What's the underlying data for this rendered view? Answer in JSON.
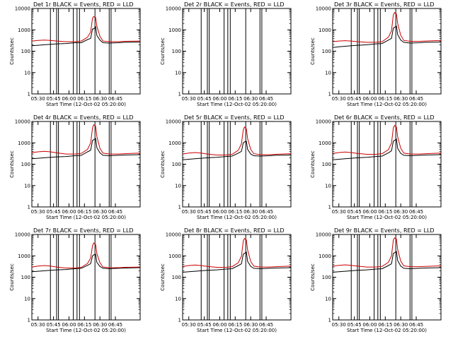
{
  "chart_data": {
    "type": "line",
    "layout": "3x3 grid",
    "shared": {
      "xlabel": "Start Time (12-Oct-02 05:20:00)",
      "ylabel": "Counts/sec",
      "yscale": "log",
      "ylim": [
        1,
        10000
      ],
      "y_ticks": [
        1,
        10,
        100,
        1000,
        10000
      ],
      "y_tick_labels": [
        "1",
        "10",
        "100",
        "1000",
        "10000"
      ],
      "xlim": [
        -0.1,
        1.65
      ],
      "x_ticks": [
        0,
        0.25,
        0.5,
        0.75,
        1.0,
        1.25
      ],
      "x_tick_labels": [
        "05:30",
        "05:45",
        "06:00",
        "06:15",
        "06:30",
        "06:45"
      ],
      "x_unit": "hours since 05:30",
      "colors": {
        "events": "#000000",
        "lld": "#cc0000",
        "axes": "#000000"
      }
    },
    "panels": [
      {
        "title": "Det 1r BLACK = Events, RED = LLD",
        "vlines": [
          0.2,
          0.3,
          0.33,
          0.57,
          0.63,
          0.67,
          0.92,
          1.15,
          1.18
        ],
        "series": [
          {
            "name": "Events",
            "x": [
              -0.1,
              0.0,
              0.1,
              0.2,
              0.3,
              0.45,
              0.6,
              0.7,
              0.8,
              0.85,
              0.88,
              0.9,
              0.93,
              0.95,
              1.0,
              1.05,
              1.15,
              1.3,
              1.4,
              1.65
            ],
            "y": [
              180,
              190,
              200,
              210,
              220,
              230,
              250,
              250,
              350,
              400,
              1100,
              1100,
              1400,
              550,
              330,
              250,
              240,
              250,
              260,
              270
            ]
          },
          {
            "name": "LLD",
            "x": [
              -0.1,
              0.0,
              0.1,
              0.2,
              0.3,
              0.45,
              0.6,
              0.7,
              0.8,
              0.85,
              0.88,
              0.9,
              0.93,
              0.95,
              1.0,
              1.05,
              1.15,
              1.3,
              1.4,
              1.65
            ],
            "y": [
              300,
              320,
              330,
              320,
              300,
              280,
              280,
              300,
              450,
              800,
              3500,
              4200,
              3800,
              1500,
              500,
              300,
              280,
              280,
              290,
              300
            ]
          }
        ]
      },
      {
        "title": "Det 2r BLACK = Events, RED = LLD",
        "vlines": [
          0.2,
          0.3,
          0.33,
          0.57,
          0.63,
          0.67,
          0.92,
          1.15,
          1.18
        ],
        "series": []
      },
      {
        "title": "Det 3r BLACK = Events, RED = LLD",
        "vlines": [
          0.2,
          0.3,
          0.33,
          0.57,
          0.63,
          0.67,
          0.92,
          1.15,
          1.18
        ],
        "series": [
          {
            "name": "Events",
            "x": [
              -0.1,
              0.0,
              0.1,
              0.2,
              0.3,
              0.45,
              0.6,
              0.7,
              0.8,
              0.85,
              0.88,
              0.9,
              0.93,
              0.95,
              1.0,
              1.05,
              1.15,
              1.3,
              1.4,
              1.65
            ],
            "y": [
              150,
              160,
              170,
              180,
              190,
              200,
              220,
              230,
              330,
              400,
              1200,
              1300,
              1500,
              600,
              330,
              260,
              240,
              250,
              260,
              270
            ]
          },
          {
            "name": "LLD",
            "x": [
              -0.1,
              0.0,
              0.1,
              0.2,
              0.3,
              0.45,
              0.6,
              0.7,
              0.8,
              0.85,
              0.88,
              0.9,
              0.93,
              0.95,
              1.0,
              1.05,
              1.15,
              1.3,
              1.4,
              1.65
            ],
            "y": [
              280,
              300,
              310,
              300,
              280,
              260,
              260,
              280,
              450,
              900,
              5000,
              6500,
              5500,
              2000,
              550,
              320,
              290,
              290,
              300,
              320
            ]
          }
        ]
      },
      {
        "title": "Det 4r BLACK = Events, RED = LLD",
        "vlines": [
          0.2,
          0.3,
          0.33,
          0.57,
          0.63,
          0.67,
          0.92,
          1.15,
          1.18
        ],
        "series": [
          {
            "name": "Events",
            "x": [
              -0.1,
              0.0,
              0.1,
              0.2,
              0.3,
              0.45,
              0.6,
              0.7,
              0.8,
              0.85,
              0.88,
              0.9,
              0.93,
              0.95,
              1.0,
              1.05,
              1.15,
              1.3,
              1.4,
              1.65
            ],
            "y": [
              180,
              190,
              200,
              210,
              220,
              230,
              250,
              260,
              380,
              450,
              1300,
              1400,
              1600,
              600,
              340,
              260,
              250,
              260,
              270,
              280
            ]
          },
          {
            "name": "LLD",
            "x": [
              -0.1,
              0.0,
              0.1,
              0.2,
              0.3,
              0.45,
              0.6,
              0.7,
              0.8,
              0.85,
              0.88,
              0.9,
              0.93,
              0.95,
              1.0,
              1.05,
              1.15,
              1.3,
              1.4,
              1.65
            ],
            "y": [
              350,
              380,
              400,
              380,
              340,
              300,
              300,
              320,
              500,
              1000,
              5000,
              7000,
              6000,
              2000,
              550,
              330,
              300,
              300,
              310,
              330
            ]
          }
        ]
      },
      {
        "title": "Det 5r BLACK = Events, RED = LLD",
        "vlines": [
          0.2,
          0.3,
          0.33,
          0.57,
          0.63,
          0.67,
          0.92,
          1.15,
          1.18
        ],
        "series": [
          {
            "name": "Events",
            "x": [
              -0.1,
              0.0,
              0.1,
              0.2,
              0.3,
              0.45,
              0.6,
              0.7,
              0.8,
              0.85,
              0.88,
              0.9,
              0.93,
              0.95,
              1.0,
              1.05,
              1.15,
              1.3,
              1.4,
              1.65
            ],
            "y": [
              160,
              170,
              180,
              190,
              200,
              210,
              230,
              240,
              330,
              400,
              1000,
              1100,
              1200,
              500,
              300,
              250,
              240,
              250,
              260,
              270
            ]
          },
          {
            "name": "LLD",
            "x": [
              -0.1,
              0.0,
              0.1,
              0.2,
              0.3,
              0.45,
              0.6,
              0.7,
              0.8,
              0.85,
              0.88,
              0.9,
              0.93,
              0.95,
              1.0,
              1.05,
              1.15,
              1.3,
              1.4,
              1.65
            ],
            "y": [
              300,
              330,
              350,
              330,
              300,
              270,
              270,
              290,
              450,
              900,
              4000,
              5500,
              4500,
              1600,
              500,
              310,
              280,
              280,
              290,
              310
            ]
          }
        ]
      },
      {
        "title": "Det 6r BLACK = Events, RED = LLD",
        "vlines": [
          0.2,
          0.3,
          0.33,
          0.57,
          0.63,
          0.67,
          0.92,
          1.15,
          1.18
        ],
        "series": [
          {
            "name": "Events",
            "x": [
              -0.1,
              0.0,
              0.1,
              0.2,
              0.3,
              0.45,
              0.6,
              0.7,
              0.8,
              0.85,
              0.88,
              0.9,
              0.93,
              0.95,
              1.0,
              1.05,
              1.15,
              1.3,
              1.4,
              1.65
            ],
            "y": [
              160,
              170,
              180,
              190,
              200,
              210,
              230,
              240,
              340,
              420,
              1200,
              1300,
              1500,
              550,
              320,
              260,
              250,
              260,
              270,
              280
            ]
          },
          {
            "name": "LLD",
            "x": [
              -0.1,
              0.0,
              0.1,
              0.2,
              0.3,
              0.45,
              0.6,
              0.7,
              0.8,
              0.85,
              0.88,
              0.9,
              0.93,
              0.95,
              1.0,
              1.05,
              1.15,
              1.3,
              1.4,
              1.65
            ],
            "y": [
              320,
              350,
              370,
              350,
              320,
              290,
              290,
              310,
              480,
              950,
              5000,
              6500,
              5500,
              1900,
              550,
              330,
              300,
              300,
              310,
              330
            ]
          }
        ]
      },
      {
        "title": "Det 7r BLACK = Events, RED = LLD",
        "vlines": [
          0.2,
          0.3,
          0.33,
          0.57,
          0.63,
          0.67,
          0.92,
          1.15,
          1.18
        ],
        "series": [
          {
            "name": "Events",
            "x": [
              -0.1,
              0.0,
              0.1,
              0.2,
              0.3,
              0.45,
              0.6,
              0.7,
              0.8,
              0.85,
              0.88,
              0.9,
              0.93,
              0.95,
              1.0,
              1.05,
              1.15,
              1.3,
              1.4,
              1.65
            ],
            "y": [
              180,
              190,
              200,
              210,
              220,
              230,
              250,
              260,
              360,
              430,
              1000,
              1100,
              1200,
              500,
              320,
              260,
              250,
              260,
              270,
              280
            ]
          },
          {
            "name": "LLD",
            "x": [
              -0.1,
              0.0,
              0.1,
              0.2,
              0.3,
              0.45,
              0.6,
              0.7,
              0.8,
              0.85,
              0.88,
              0.9,
              0.93,
              0.95,
              1.0,
              1.05,
              1.15,
              1.3,
              1.4,
              1.65
            ],
            "y": [
              300,
              330,
              350,
              330,
              300,
              270,
              270,
              290,
              440,
              800,
              3000,
              4000,
              3400,
              1300,
              480,
              300,
              280,
              280,
              290,
              300
            ]
          }
        ]
      },
      {
        "title": "Det 8r BLACK = Events, RED = LLD",
        "vlines": [
          0.2,
          0.3,
          0.33,
          0.57,
          0.63,
          0.67,
          0.92,
          1.15,
          1.18
        ],
        "series": [
          {
            "name": "Events",
            "x": [
              -0.1,
              0.0,
              0.1,
              0.2,
              0.3,
              0.45,
              0.6,
              0.7,
              0.8,
              0.85,
              0.88,
              0.9,
              0.93,
              0.95,
              1.0,
              1.05,
              1.15,
              1.3,
              1.4,
              1.65
            ],
            "y": [
              170,
              180,
              190,
              200,
              210,
              220,
              240,
              250,
              350,
              420,
              1200,
              1300,
              1500,
              550,
              320,
              260,
              250,
              260,
              270,
              280
            ]
          },
          {
            "name": "LLD",
            "x": [
              -0.1,
              0.0,
              0.1,
              0.2,
              0.3,
              0.45,
              0.6,
              0.7,
              0.8,
              0.85,
              0.88,
              0.9,
              0.93,
              0.95,
              1.0,
              1.05,
              1.15,
              1.3,
              1.4,
              1.65
            ],
            "y": [
              320,
              350,
              370,
              350,
              320,
              290,
              290,
              310,
              480,
              950,
              5000,
              6500,
              5500,
              1900,
              550,
              330,
              300,
              300,
              310,
              330
            ]
          }
        ]
      },
      {
        "title": "Det 9r BLACK = Events, RED = LLD",
        "vlines": [
          0.2,
          0.3,
          0.33,
          0.57,
          0.63,
          0.67,
          0.92,
          1.15,
          1.18
        ],
        "series": [
          {
            "name": "Events",
            "x": [
              -0.1,
              0.0,
              0.1,
              0.2,
              0.3,
              0.45,
              0.6,
              0.7,
              0.8,
              0.85,
              0.88,
              0.9,
              0.93,
              0.95,
              1.0,
              1.05,
              1.15,
              1.3,
              1.4,
              1.65
            ],
            "y": [
              170,
              180,
              190,
              200,
              210,
              220,
              240,
              250,
              350,
              420,
              1300,
              1400,
              1600,
              600,
              330,
              260,
              250,
              260,
              270,
              280
            ]
          },
          {
            "name": "LLD",
            "x": [
              -0.1,
              0.0,
              0.1,
              0.2,
              0.3,
              0.45,
              0.6,
              0.7,
              0.8,
              0.85,
              0.88,
              0.9,
              0.93,
              0.95,
              1.0,
              1.05,
              1.15,
              1.3,
              1.4,
              1.65
            ],
            "y": [
              330,
              360,
              380,
              360,
              330,
              300,
              300,
              320,
              500,
              1000,
              5500,
              7000,
              6000,
              2000,
              560,
              340,
              310,
              310,
              320,
              340
            ]
          }
        ]
      }
    ]
  }
}
